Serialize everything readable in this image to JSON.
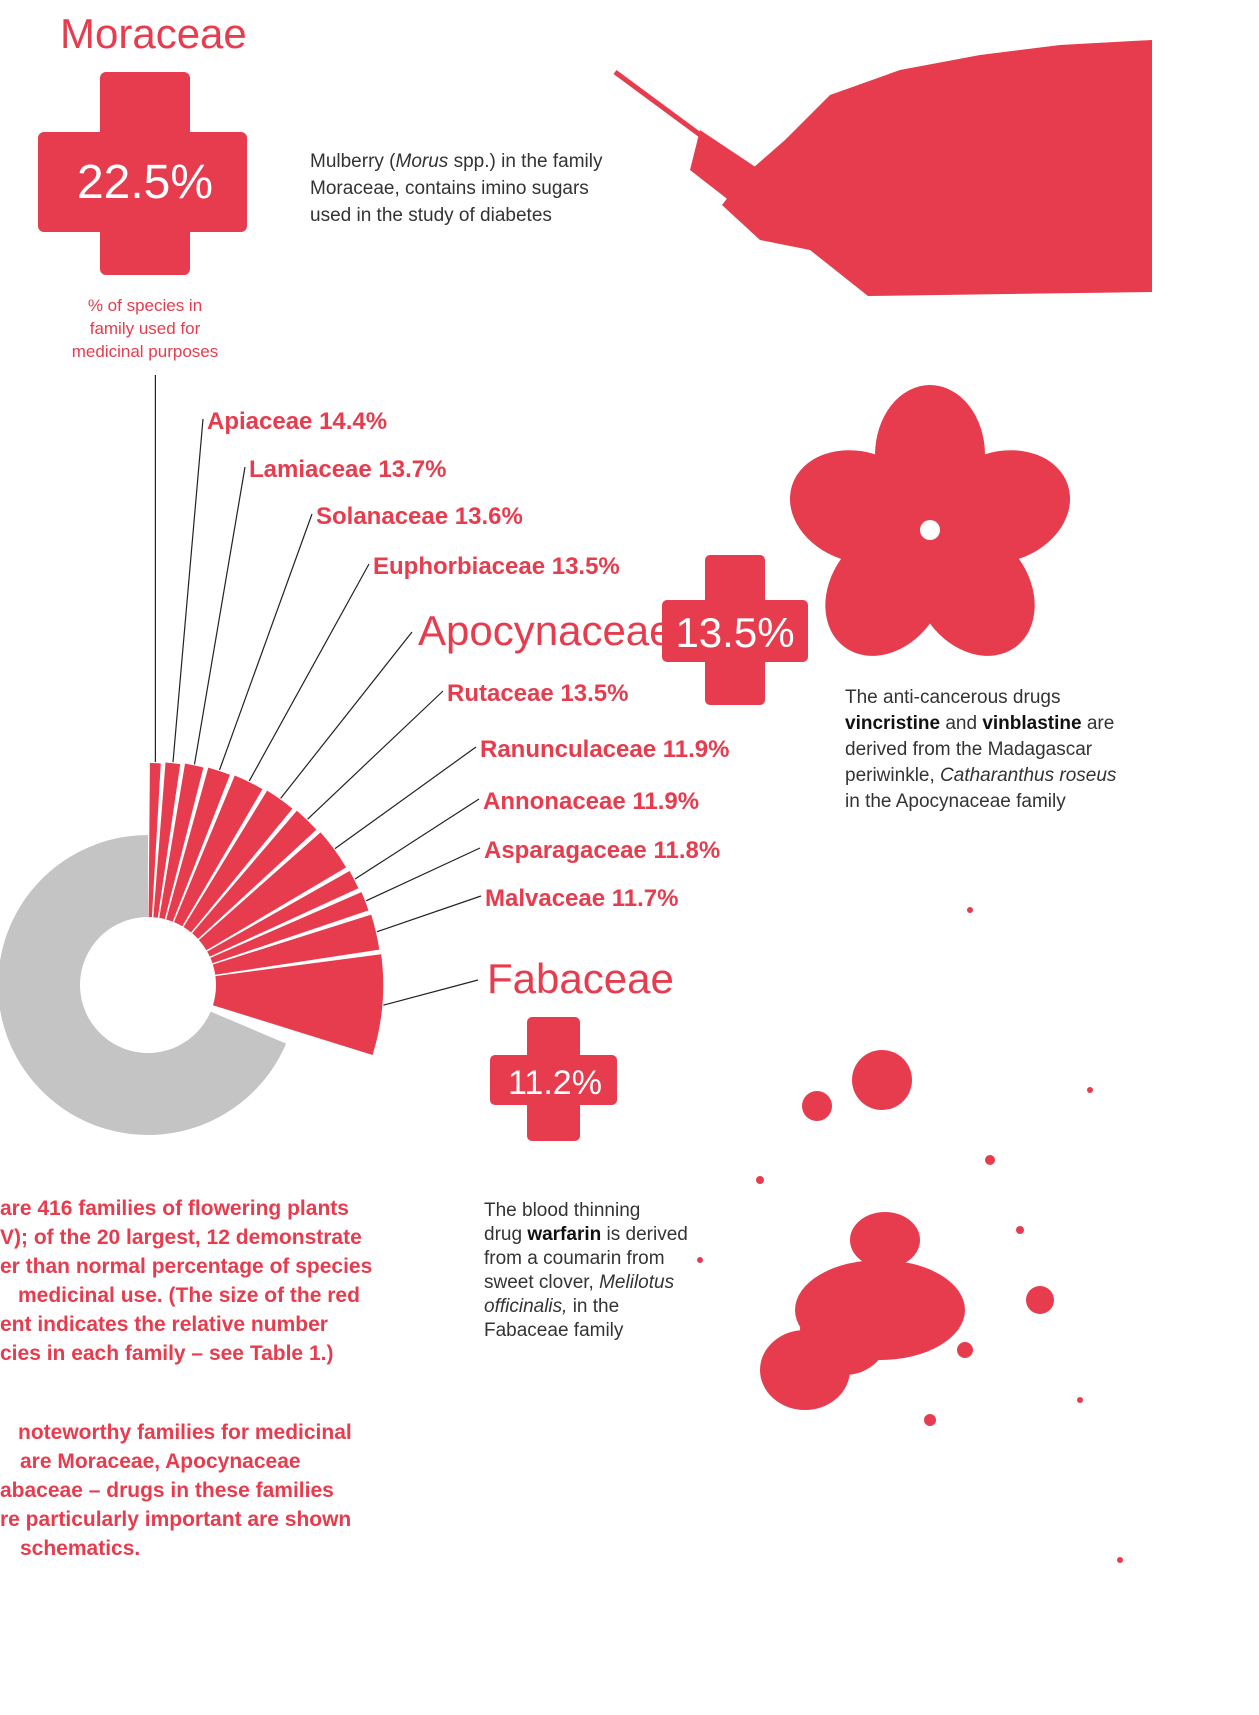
{
  "moraceae": {
    "name": "Moraceae",
    "percent": "22.5%",
    "caption": [
      "% of species in",
      "family used for",
      "medicinal purposes"
    ],
    "note": [
      [
        {
          "text": "Mulberry ("
        },
        {
          "text": "Morus",
          "italic": true
        },
        {
          "text": " spp.) in the family"
        }
      ],
      [
        {
          "text": "Moraceae, contains imino sugars"
        }
      ],
      [
        {
          "text": "used in the study of diabetes"
        }
      ]
    ]
  },
  "families": [
    "Apiaceae 14.4%",
    "Lamiaceae 13.7%",
    "Solanaceae 13.6%",
    "Euphorbiaceae 13.5%",
    "Rutaceae 13.5%",
    "Ranunculaceae 11.9%",
    "Annonaceae 11.9%",
    "Asparagaceae 11.8%",
    "Malvaceae 11.7%"
  ],
  "apocynaceae": {
    "name": "Apocynaceae",
    "percent": "13.5%",
    "note": [
      [
        {
          "text": "The anti-cancerous drugs"
        }
      ],
      [
        {
          "text": "vincristine",
          "bold": true
        },
        {
          "text": " and "
        },
        {
          "text": "vinblastine",
          "bold": true
        },
        {
          "text": " are"
        }
      ],
      [
        {
          "text": "derived from the Madagascar"
        }
      ],
      [
        {
          "text": "periwinkle, "
        },
        {
          "text": "Catharanthus roseus",
          "italic": true
        }
      ],
      [
        {
          "text": "in the Apocynaceae family"
        }
      ]
    ]
  },
  "fabaceae": {
    "name": "Fabaceae",
    "percent": "11.2%",
    "note": [
      [
        {
          "text": "The blood thinning"
        }
      ],
      [
        {
          "text": "drug "
        },
        {
          "text": "warfarin",
          "bold": true
        },
        {
          "text": " is derived"
        }
      ],
      [
        {
          "text": "from a coumarin from"
        }
      ],
      [
        {
          "text": "sweet clover, "
        },
        {
          "text": "Melilotus",
          "italic": true
        }
      ],
      [
        {
          "text": "officinalis,",
          "italic": true
        },
        {
          "text": " in the"
        }
      ],
      [
        {
          "text": "Fabaceae family"
        }
      ]
    ]
  },
  "summary": [
    [
      "are 416 families of flowering plants",
      "V); of the 20 largest, 12 demonstrate",
      "er than normal percentage of species",
      "medicinal use. (The size of the red",
      "ent indicates the relative number",
      "cies in each family – see Table 1.)"
    ],
    [
      "noteworthy families for medicinal",
      "are Moraceae, Apocynaceae",
      "abaceae – drugs in these families",
      "re particularly important are shown",
      "schematics."
    ]
  ]
}
